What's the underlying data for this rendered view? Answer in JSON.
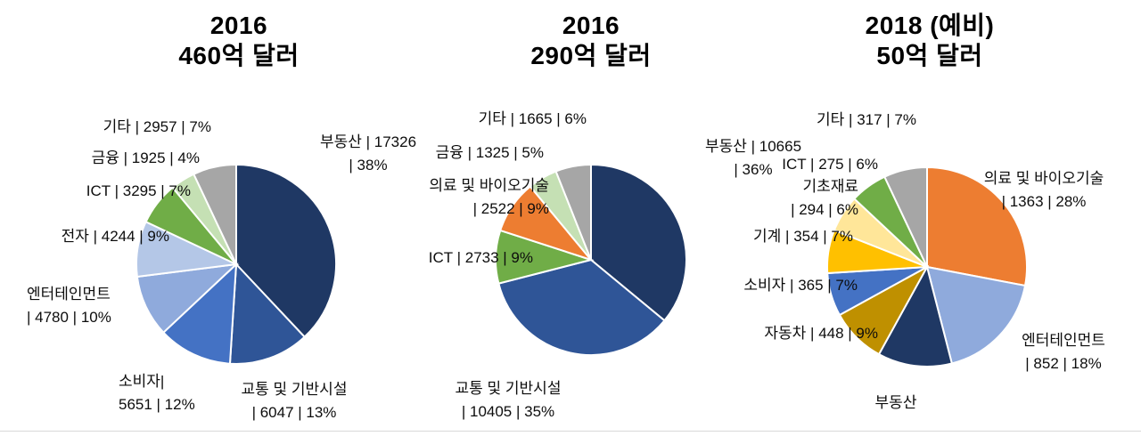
{
  "page": {
    "background": "#FFFFFF"
  },
  "chart_data": [
    {
      "type": "pie",
      "title_lines": [
        "2016",
        "460억 달러"
      ],
      "slices": [
        {
          "key": "real-estate",
          "name": "부동산",
          "value": 17326,
          "percent": 38,
          "color": "#1F3864",
          "label_lines": [
            "부동산 | 17326",
            "| 38%"
          ]
        },
        {
          "key": "transport-infrastructure",
          "name": "교통 및 기반시설",
          "value": 6047,
          "percent": 13,
          "color": "#2F5597",
          "label_lines": [
            "교통 및 기반시설",
            "| 6047 | 13%"
          ]
        },
        {
          "key": "consumer",
          "name": "소비자",
          "value": 5651,
          "percent": 12,
          "color": "#4472C4",
          "label_lines": [
            "소비자|",
            "5651 | 12%"
          ]
        },
        {
          "key": "entertainment",
          "name": "엔터테인먼트",
          "value": 4780,
          "percent": 10,
          "color": "#8FAADC",
          "label_lines": [
            "엔터테인먼트",
            "| 4780 | 10%"
          ]
        },
        {
          "key": "electronics",
          "name": "전자",
          "value": 4244,
          "percent": 9,
          "color": "#B4C7E7",
          "label_lines": [
            "전자 | 4244 | 9%"
          ]
        },
        {
          "key": "ict",
          "name": "ICT",
          "value": 3295,
          "percent": 7,
          "color": "#70AD47",
          "label_lines": [
            "ICT | 3295 | 7%"
          ]
        },
        {
          "key": "finance",
          "name": "금융",
          "value": 1925,
          "percent": 4,
          "color": "#C5E0B4",
          "label_lines": [
            "금융 | 1925 | 4%"
          ]
        },
        {
          "key": "other",
          "name": "기타",
          "value": 2957,
          "percent": 7,
          "color": "#A6A6A6",
          "label_lines": [
            "기타 | 2957 | 7%"
          ]
        }
      ]
    },
    {
      "type": "pie",
      "title_lines": [
        "2016",
        "290억 달러"
      ],
      "slices": [
        {
          "key": "real-estate",
          "name": "부동산",
          "value": 10665,
          "percent": 36,
          "color": "#1F3864",
          "label_lines": [
            "부동산 | 10665",
            "| 36%"
          ]
        },
        {
          "key": "transport-infrastructure",
          "name": "교통 및 기반시설",
          "value": 10405,
          "percent": 35,
          "color": "#2F5597",
          "label_lines": [
            "교통 및 기반시설",
            "| 10405 | 35%"
          ]
        },
        {
          "key": "ict",
          "name": "ICT",
          "value": 2733,
          "percent": 9,
          "color": "#70AD47",
          "label_lines": [
            "ICT | 2733 | 9%"
          ]
        },
        {
          "key": "medical-biotech",
          "name": "의료 및 바이오기술",
          "value": 2522,
          "percent": 9,
          "color": "#ED7D31",
          "label_lines": [
            "의료 및 바이오기술",
            "| 2522 | 9%"
          ]
        },
        {
          "key": "finance",
          "name": "금융",
          "value": 1325,
          "percent": 5,
          "color": "#C5E0B4",
          "label_lines": [
            "금융 | 1325 | 5%"
          ]
        },
        {
          "key": "other",
          "name": "기타",
          "value": 1665,
          "percent": 6,
          "color": "#A6A6A6",
          "label_lines": [
            "기타 | 1665 | 6%"
          ]
        }
      ]
    },
    {
      "type": "pie",
      "title_lines": [
        "2018 (예비)",
        "50억 달러"
      ],
      "slices": [
        {
          "key": "medical-biotech",
          "name": "의료 및 바이오기술",
          "value": 1363,
          "percent": 28,
          "color": "#ED7D31",
          "label_lines": [
            "의료 및 바이오기술",
            "| 1363 | 28%"
          ]
        },
        {
          "key": "entertainment",
          "name": "엔터테인먼트",
          "value": 852,
          "percent": 18,
          "color": "#8FAADC",
          "label_lines": [
            "엔터테인먼트",
            "| 852 | 18%"
          ]
        },
        {
          "key": "real-estate",
          "name": "부동산",
          "percent": 12,
          "color": "#1F3864",
          "label_lines": [
            "부동산"
          ]
        },
        {
          "key": "automotive",
          "name": "자동차",
          "value": 448,
          "percent": 9,
          "color": "#BF9000",
          "label_lines": [
            "자동차 | 448 | 9%"
          ]
        },
        {
          "key": "consumer",
          "name": "소비자",
          "value": 365,
          "percent": 7,
          "color": "#4472C4",
          "label_lines": [
            "소비자 | 365 | 7%"
          ]
        },
        {
          "key": "machinery",
          "name": "기계",
          "value": 354,
          "percent": 7,
          "color": "#FFC000",
          "label_lines": [
            "기계 | 354 | 7%"
          ]
        },
        {
          "key": "basic-materials",
          "name": "기초재료",
          "value": 294,
          "percent": 6,
          "color": "#FFE699",
          "label_lines": [
            "기초재료",
            "| 294 | 6%"
          ]
        },
        {
          "key": "ict",
          "name": "ICT",
          "value": 275,
          "percent": 6,
          "color": "#70AD47",
          "label_lines": [
            "ICT | 275 | 6%"
          ]
        },
        {
          "key": "other",
          "name": "기타",
          "value": 317,
          "percent": 7,
          "color": "#A6A6A6",
          "label_lines": [
            "기타 | 317 | 7%"
          ]
        }
      ]
    }
  ]
}
